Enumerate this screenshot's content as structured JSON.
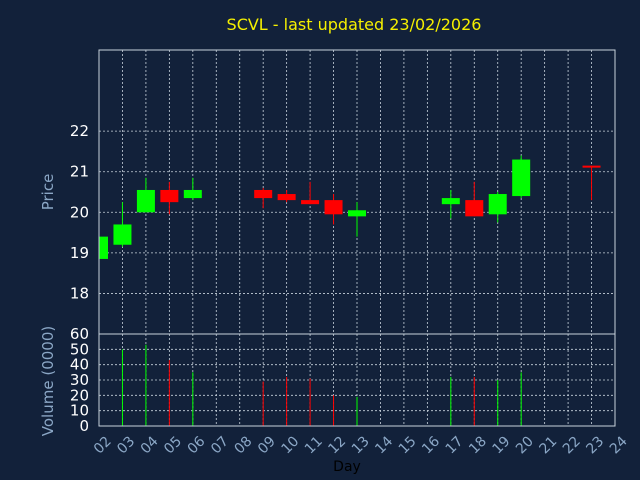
{
  "chart_data": {
    "type": "candlestick",
    "title": "SCVL - last updated 23/02/2026",
    "xlabel": "Day",
    "price_panel": {
      "ylabel": "Price",
      "ylim": [
        17.0,
        24.0
      ],
      "yticks": [
        18,
        19,
        20,
        21,
        22
      ]
    },
    "volume_panel": {
      "ylabel": "Volume (0000)",
      "ylim": [
        0,
        60
      ],
      "yticks": [
        0,
        10,
        20,
        30,
        40,
        50,
        60
      ]
    },
    "x_ticks": [
      "02",
      "03",
      "04",
      "05",
      "06",
      "07",
      "08",
      "09",
      "10",
      "11",
      "12",
      "13",
      "14",
      "15",
      "16",
      "17",
      "18",
      "19",
      "20",
      "21",
      "22",
      "23",
      "24"
    ],
    "colors": {
      "up": "#00ff00",
      "down": "#ff0000",
      "title": "#f5f000",
      "background": "#12213a"
    },
    "candles": [
      {
        "day": "02",
        "open": 18.85,
        "high": 19.4,
        "low": 18.8,
        "close": 19.4,
        "volume": 0
      },
      {
        "day": "03",
        "open": 19.2,
        "high": 20.25,
        "low": 19.15,
        "close": 19.7,
        "volume": 50
      },
      {
        "day": "04",
        "open": 20.0,
        "high": 20.85,
        "low": 20.0,
        "close": 20.55,
        "volume": 53
      },
      {
        "day": "05",
        "open": 20.55,
        "high": 20.75,
        "low": 19.95,
        "close": 20.25,
        "volume": 43
      },
      {
        "day": "06",
        "open": 20.35,
        "high": 20.85,
        "low": 20.3,
        "close": 20.55,
        "volume": 35
      },
      {
        "day": "09",
        "open": 20.55,
        "high": 20.6,
        "low": 20.1,
        "close": 20.35,
        "volume": 29
      },
      {
        "day": "10",
        "open": 20.45,
        "high": 20.55,
        "low": 20.25,
        "close": 20.3,
        "volume": 32
      },
      {
        "day": "11",
        "open": 20.3,
        "high": 20.75,
        "low": 20.2,
        "close": 20.2,
        "volume": 31
      },
      {
        "day": "12",
        "open": 20.3,
        "high": 20.45,
        "low": 19.7,
        "close": 19.95,
        "volume": 20
      },
      {
        "day": "13",
        "open": 19.9,
        "high": 20.25,
        "low": 19.4,
        "close": 20.05,
        "volume": 19
      },
      {
        "day": "17",
        "open": 20.2,
        "high": 20.55,
        "low": 19.85,
        "close": 20.35,
        "volume": 32
      },
      {
        "day": "18",
        "open": 20.3,
        "high": 20.75,
        "low": 19.9,
        "close": 19.9,
        "volume": 32
      },
      {
        "day": "19",
        "open": 19.95,
        "high": 20.5,
        "low": 19.75,
        "close": 20.45,
        "volume": 30
      },
      {
        "day": "20",
        "open": 20.4,
        "high": 21.4,
        "low": 20.35,
        "close": 21.3,
        "volume": 35
      },
      {
        "day": "23",
        "open": 21.15,
        "high": 21.15,
        "low": 20.3,
        "close": 21.15,
        "volume": 0,
        "direction": "down"
      }
    ]
  }
}
